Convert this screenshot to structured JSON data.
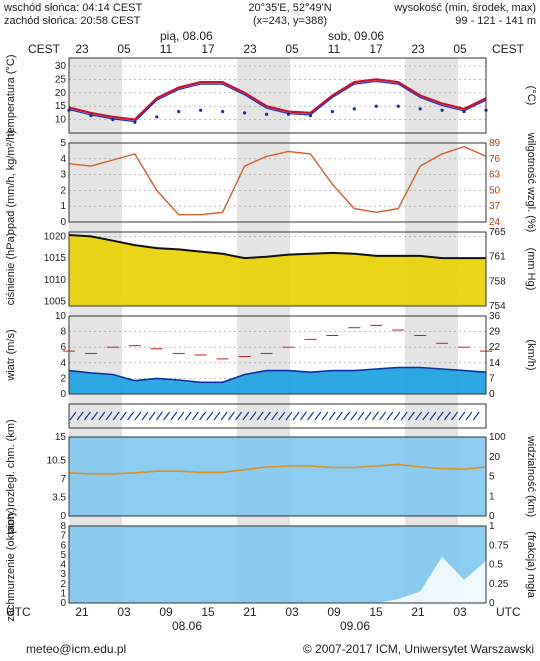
{
  "header": {
    "sunrise": "wschód słońca: 04:14 CEST",
    "sunset": "zachód słońca: 20:58 CEST",
    "coords": "20°35'E, 52°49'N",
    "grid": "(x=243, y=388)",
    "elevation_title": "wysokość (min, środek, max)",
    "elevation_values": "99 - 121 - 141 m",
    "tz_left": "CEST",
    "tz_right": "CEST",
    "day1": "pią, 08.06",
    "day2": "sob, 09.06",
    "top_hours": [
      "23",
      "05",
      "11",
      "17",
      "23",
      "05",
      "11",
      "17",
      "23",
      "05"
    ]
  },
  "footer": {
    "tz_left": "UTC",
    "tz_right": "UTC",
    "bottom_hours": [
      "21",
      "03",
      "09",
      "15",
      "21",
      "03",
      "09",
      "15",
      "21",
      "03"
    ],
    "date1": "08.06",
    "date2": "09.06",
    "email": "meteo@icm.edu.pl",
    "copyright": "© 2007-2017 ICM, Uniwersytet Warszawski"
  },
  "colors": {
    "night_shade": "#d8d8d8",
    "temperature_line": "#cc1030",
    "dew_point": "#1030a0",
    "humidity_line": "#d06030",
    "pressure_fill": "#e8d000",
    "wind_fill": "#18a0e0",
    "cloud_fill": "#80c8f0"
  },
  "chart_data": [
    {
      "type": "line",
      "panel": "temperature",
      "ylabel": "temperatura (°C)",
      "ylabel_right": "(°C)",
      "ylim": [
        5,
        33
      ],
      "yticks": [
        10,
        15,
        20,
        25,
        30
      ],
      "x": [
        0,
        3,
        6,
        9,
        12,
        15,
        18,
        21,
        24,
        27,
        30,
        33,
        36,
        39,
        42,
        45,
        48,
        51,
        54,
        57
      ],
      "series": [
        {
          "name": "temperatura",
          "values": [
            14.5,
            12.5,
            11,
            10,
            18,
            22,
            24,
            24,
            20,
            15,
            13,
            12.5,
            19,
            24,
            25,
            24,
            19,
            16,
            14,
            18
          ]
        },
        {
          "name": "punkt rosy",
          "values": [
            13.5,
            11.5,
            10,
            9,
            11,
            13,
            13.5,
            13,
            12.5,
            12,
            12,
            11.5,
            13,
            14,
            15,
            15,
            14,
            13.5,
            13,
            13.5
          ]
        }
      ]
    },
    {
      "type": "line",
      "panel": "precipitation_humidity",
      "ylabel": "opad (mm/h, kg/m²/h)",
      "ylabel_right": "wilgotność wzgl. (%)",
      "ylim": [
        0,
        5
      ],
      "yticks": [
        0,
        1,
        2,
        3,
        4,
        5
      ],
      "yticks_right": [
        24,
        37,
        50,
        63,
        76,
        89
      ],
      "x": [
        0,
        3,
        6,
        9,
        12,
        15,
        18,
        21,
        24,
        27,
        30,
        33,
        36,
        39,
        42,
        45,
        48,
        51,
        54,
        57
      ],
      "series": [
        {
          "name": "wilgotność",
          "values": [
            72,
            70,
            75,
            80,
            50,
            30,
            30,
            32,
            70,
            78,
            82,
            80,
            55,
            35,
            32,
            35,
            70,
            80,
            86,
            78
          ]
        }
      ]
    },
    {
      "type": "area",
      "panel": "pressure",
      "ylabel": "ciśnienie (hPa)",
      "ylabel_right": "(mm Hg)",
      "ylim": [
        1004,
        1021
      ],
      "yticks": [
        1005,
        1010,
        1015,
        1020
      ],
      "yticks_right": [
        754,
        758,
        761,
        765
      ],
      "x": [
        0,
        3,
        6,
        9,
        12,
        15,
        18,
        21,
        24,
        27,
        30,
        33,
        36,
        39,
        42,
        45,
        48,
        51,
        54,
        57
      ],
      "series": [
        {
          "name": "ciśnienie",
          "values": [
            1020.3,
            1020,
            1019,
            1018,
            1017.3,
            1017,
            1016.5,
            1016,
            1015,
            1015.3,
            1015.8,
            1016,
            1016.2,
            1016,
            1015.5,
            1015.5,
            1015.5,
            1015,
            1015,
            1015
          ]
        }
      ]
    },
    {
      "type": "area",
      "panel": "wind",
      "ylabel": "wiatr (m/s)",
      "ylabel_right": "(km/h)",
      "ylim": [
        0,
        10
      ],
      "yticks": [
        0,
        2,
        4,
        6,
        8,
        10
      ],
      "yticks_right": [
        0,
        7,
        14,
        22,
        29,
        36
      ],
      "x": [
        0,
        3,
        6,
        9,
        12,
        15,
        18,
        21,
        24,
        27,
        30,
        33,
        36,
        39,
        42,
        45,
        48,
        51,
        54,
        57
      ],
      "series": [
        {
          "name": "prędkość",
          "values": [
            3,
            2.7,
            2.5,
            1.7,
            2,
            1.8,
            1.5,
            1.5,
            2.5,
            3,
            3,
            2.8,
            3,
            3,
            3.2,
            3.4,
            3.4,
            3.2,
            3,
            2.8
          ]
        },
        {
          "name": "porywy",
          "values": [
            5.5,
            5.2,
            6,
            6.2,
            5.8,
            5.2,
            5,
            4.5,
            4.8,
            5.2,
            6,
            7,
            7.5,
            8.5,
            8.8,
            8.2,
            7.5,
            6.5,
            6,
            5.5
          ]
        }
      ]
    },
    {
      "type": "line",
      "panel": "visibility",
      "ylabel": "pion. rozległ. chm. (km)",
      "ylabel_right": "widzialność (km)",
      "ylim": [
        0,
        15
      ],
      "yticks": [
        0,
        3.5,
        7.0,
        10.5,
        15.0
      ],
      "yticks_right": [
        0,
        1,
        5,
        20,
        100
      ],
      "x": [
        0,
        3,
        6,
        9,
        12,
        15,
        18,
        21,
        24,
        27,
        30,
        33,
        36,
        39,
        42,
        45,
        48,
        51,
        54,
        57
      ],
      "series": [
        {
          "name": "widzialność",
          "values": [
            8.2,
            8,
            8,
            8.2,
            8.5,
            8.5,
            8.3,
            8.3,
            8.8,
            9.3,
            9.5,
            9.5,
            9.2,
            9.2,
            9.5,
            9.8,
            9.3,
            9.0,
            8.9,
            9.3
          ]
        }
      ]
    },
    {
      "type": "area",
      "panel": "cloud_cover",
      "ylabel": "zachmurzenie (oktanty)",
      "ylabel_right": "(frakcja) mgła",
      "ylim": [
        0,
        8
      ],
      "yticks": [
        0,
        1,
        2,
        3,
        4,
        5,
        6,
        7,
        8
      ],
      "yticks_right": [
        0,
        0.25,
        0.5,
        0.75,
        1
      ],
      "x": [
        0,
        3,
        6,
        9,
        12,
        15,
        18,
        21,
        24,
        27,
        30,
        33,
        36,
        39,
        42,
        45,
        48,
        51,
        54,
        57
      ],
      "series": [
        {
          "name": "zachmurzenie",
          "values": [
            8,
            8,
            8,
            8,
            8,
            8,
            8,
            8,
            8,
            8,
            8,
            8,
            8,
            8,
            8,
            8,
            8,
            8,
            8,
            8
          ]
        },
        {
          "name": "mgła",
          "values": [
            0,
            0,
            0,
            0,
            0,
            0,
            0,
            0,
            0,
            0,
            0,
            0,
            0,
            0,
            0,
            0.05,
            0.15,
            0.6,
            0.3,
            0.55
          ]
        }
      ]
    }
  ]
}
